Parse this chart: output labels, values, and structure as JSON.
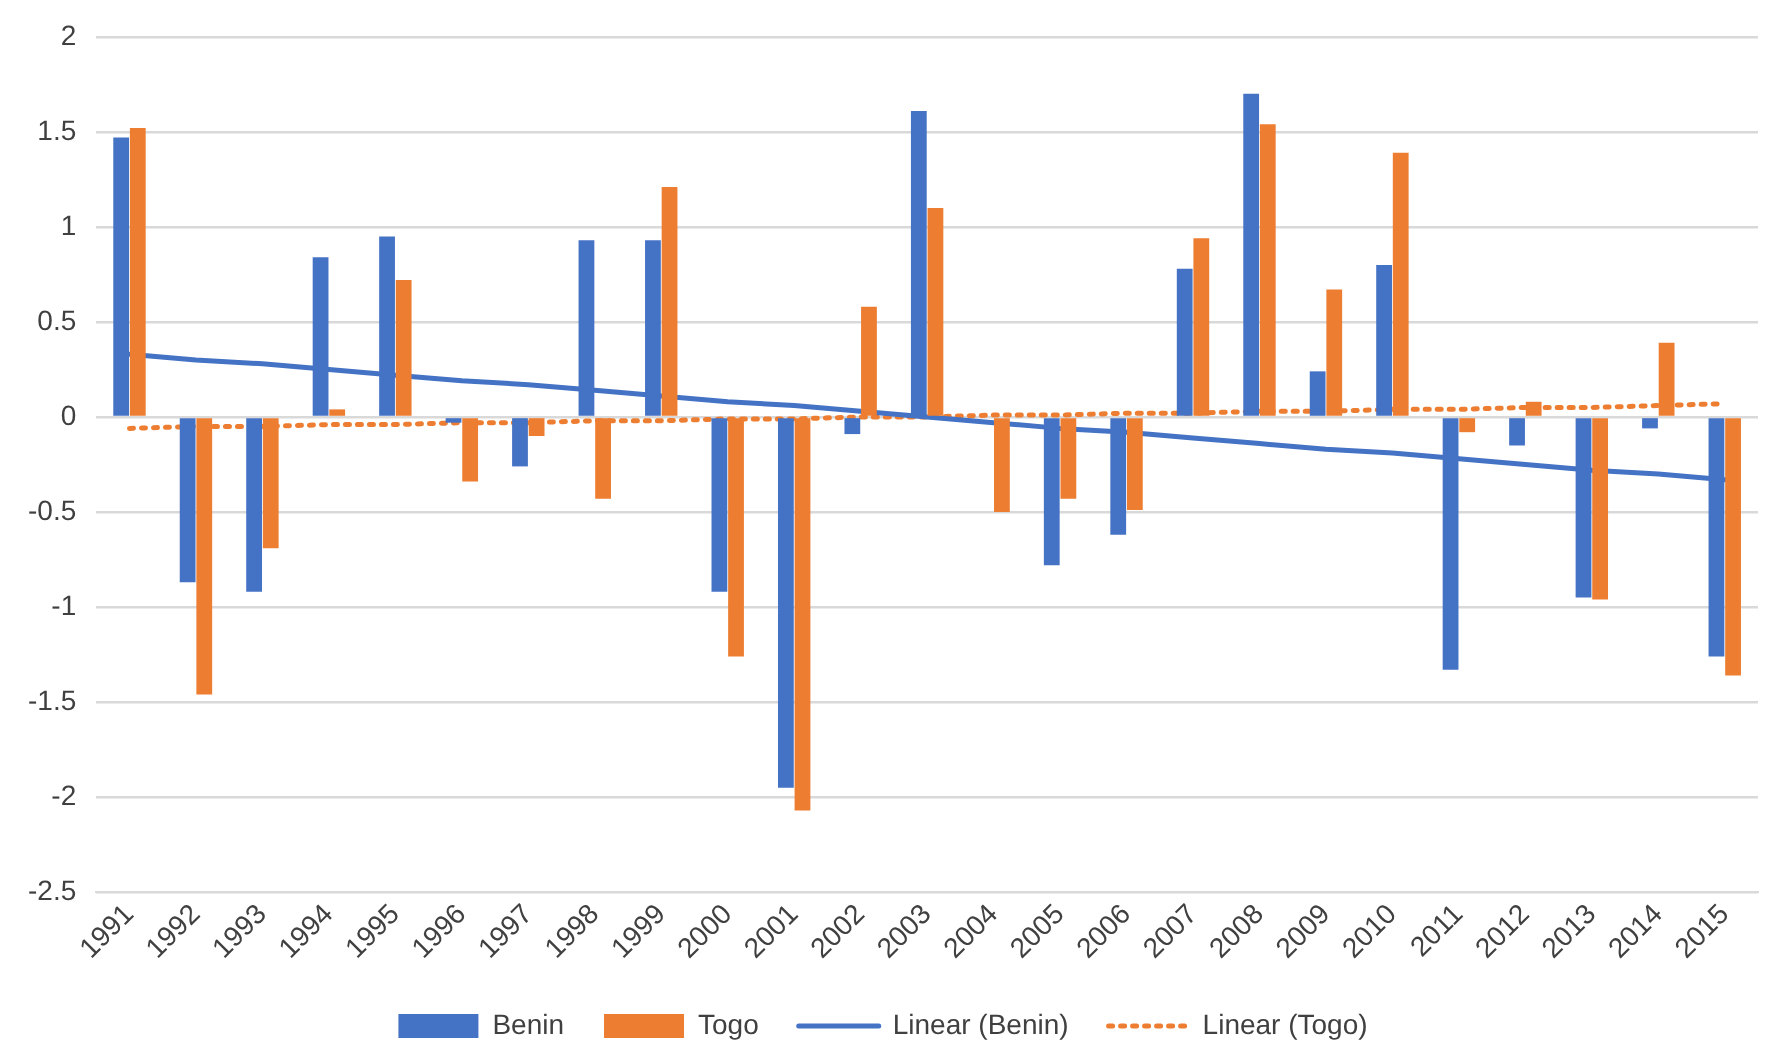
{
  "chart_data": {
    "type": "bar",
    "categories": [
      "1991",
      "1992",
      "1993",
      "1994",
      "1995",
      "1996",
      "1997",
      "1998",
      "1999",
      "2000",
      "2001",
      "2002",
      "2003",
      "2004",
      "2005",
      "2006",
      "2007",
      "2008",
      "2009",
      "2010",
      "2011",
      "2012",
      "2013",
      "2014",
      "2015"
    ],
    "series": [
      {
        "name": "Benin",
        "color": "#4472c4",
        "values": [
          1.47,
          -0.87,
          -0.92,
          0.84,
          0.95,
          -0.03,
          -0.26,
          0.93,
          0.93,
          -0.92,
          -1.95,
          -0.09,
          1.61,
          0,
          -0.78,
          -0.62,
          0.78,
          1.7,
          0.24,
          0.8,
          -1.33,
          -0.15,
          -0.95,
          -0.06,
          -1.26
        ]
      },
      {
        "name": "Togo",
        "color": "#ed7d31",
        "values": [
          1.52,
          -1.46,
          -0.69,
          0.04,
          0.72,
          -0.34,
          -0.1,
          -0.43,
          1.21,
          -1.26,
          -2.07,
          0.58,
          1.1,
          -0.5,
          -0.43,
          -0.49,
          0.94,
          1.54,
          0.67,
          1.39,
          -0.08,
          0.08,
          -0.96,
          0.39,
          -1.36
        ]
      },
      {
        "name": "Linear (Benin)",
        "type": "line",
        "color": "#4472c4",
        "line_style": "solid",
        "values": [
          0.33,
          0.3,
          0.28,
          0.25,
          0.22,
          0.19,
          0.17,
          0.14,
          0.11,
          0.08,
          0.06,
          0.03,
          0,
          -0.03,
          -0.06,
          -0.08,
          -0.11,
          -0.14,
          -0.17,
          -0.19,
          -0.22,
          -0.25,
          -0.28,
          -0.3,
          -0.33
        ]
      },
      {
        "name": "Linear (Togo)",
        "type": "line",
        "color": "#ed7d31",
        "line_style": "dotted",
        "values": [
          -0.06,
          -0.05,
          -0.05,
          -0.04,
          -0.04,
          -0.03,
          -0.03,
          -0.02,
          -0.02,
          -0.01,
          -0.01,
          0,
          0,
          0.01,
          0.01,
          0.02,
          0.02,
          0.03,
          0.03,
          0.04,
          0.04,
          0.05,
          0.05,
          0.06,
          0.07
        ]
      }
    ],
    "ylim": [
      -2.5,
      2
    ],
    "yticks": [
      -2.5,
      -2,
      -1.5,
      -1,
      -0.5,
      0,
      0.5,
      1,
      1.5,
      2
    ],
    "grid": "y",
    "legend": "bottom",
    "marker": "none"
  }
}
